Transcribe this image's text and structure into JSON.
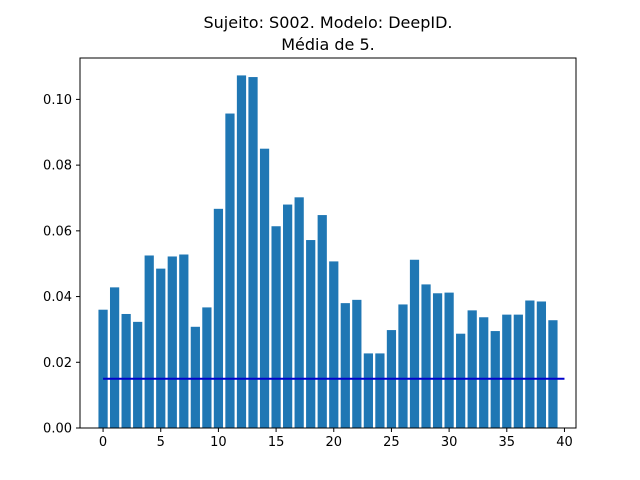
{
  "chart_data": {
    "type": "bar",
    "title_line1": "Sujeito: S002. Modelo: DeepID.",
    "title_line2": "Média de 5.",
    "xlabel": "",
    "ylabel": "",
    "x": [
      0,
      1,
      2,
      3,
      4,
      5,
      6,
      7,
      8,
      9,
      10,
      11,
      12,
      13,
      14,
      15,
      16,
      17,
      18,
      19,
      20,
      21,
      22,
      23,
      24,
      25,
      26,
      27,
      28,
      29,
      30,
      31,
      32,
      33,
      34,
      35,
      36,
      37,
      38,
      39
    ],
    "values": [
      0.036,
      0.0428,
      0.0347,
      0.0323,
      0.0525,
      0.0485,
      0.0522,
      0.0528,
      0.0308,
      0.0367,
      0.0667,
      0.0957,
      0.1073,
      0.1068,
      0.085,
      0.0614,
      0.068,
      0.0702,
      0.0572,
      0.0648,
      0.0507,
      0.038,
      0.039,
      0.0227,
      0.0227,
      0.0298,
      0.0376,
      0.0512,
      0.0437,
      0.041,
      0.0412,
      0.0287,
      0.0358,
      0.0337,
      0.0295,
      0.0345,
      0.0345,
      0.0388,
      0.0385,
      0.0328
    ],
    "bar_color": "#1f77b4",
    "threshold": {
      "value": 0.015,
      "x_range": [
        0,
        40
      ],
      "color": "#0000cc"
    },
    "xlim": [
      -2.0,
      41.0
    ],
    "ylim": [
      0,
      0.1126
    ],
    "xticks": [
      0,
      5,
      10,
      15,
      20,
      25,
      30,
      35,
      40
    ],
    "xtick_labels": [
      "0",
      "5",
      "10",
      "15",
      "20",
      "25",
      "30",
      "35",
      "40"
    ],
    "yticks": [
      0.0,
      0.02,
      0.04,
      0.06,
      0.08,
      0.1
    ],
    "ytick_labels": [
      "0.00",
      "0.02",
      "0.04",
      "0.06",
      "0.08",
      "0.10"
    ],
    "grid": false,
    "legend": "none"
  }
}
